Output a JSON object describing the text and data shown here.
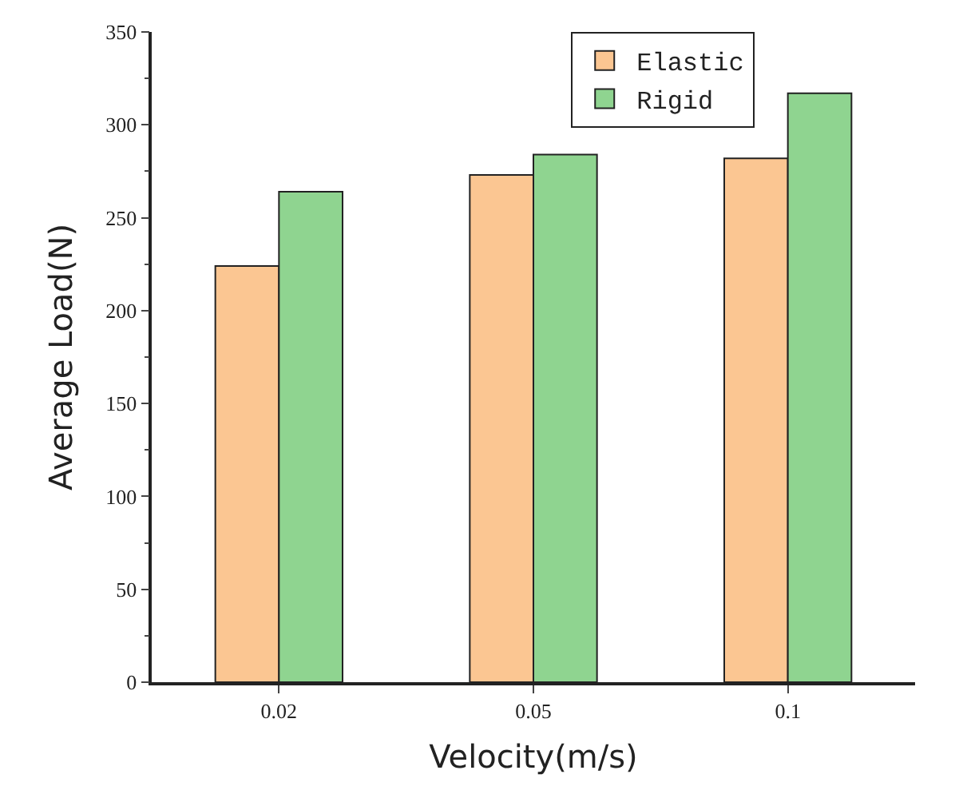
{
  "chart_data": {
    "type": "bar",
    "xlabel": "Velocity(m/s)",
    "ylabel": "Average Load(N)",
    "categories": [
      "0.02",
      "0.05",
      "0.1"
    ],
    "series": [
      {
        "name": "Elastic",
        "color": "#fbc692",
        "values": [
          224,
          273,
          282
        ]
      },
      {
        "name": "Rigid",
        "color": "#8fd490",
        "values": [
          264,
          284,
          317
        ]
      }
    ],
    "ylim": [
      0,
      350
    ],
    "yticks": [
      0,
      50,
      100,
      150,
      200,
      250,
      300,
      350
    ],
    "legend": "top right"
  }
}
